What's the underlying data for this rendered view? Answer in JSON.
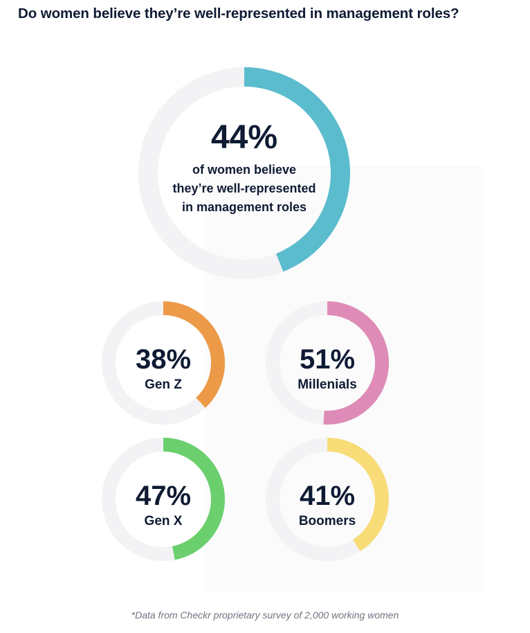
{
  "title": "Do women believe they’re well-represented in management roles?",
  "footnote": "*Data from Checkr proprietary survey of 2,000 working women",
  "chart_data": {
    "type": "donut",
    "track_color": "#f3f3f5",
    "main": {
      "value": 44,
      "value_label": "44%",
      "label_lines": [
        "of women believe",
        "they’re well-represented",
        "in management roles"
      ],
      "color": "#5bbccd"
    },
    "groups": [
      {
        "name": "Gen Z",
        "value": 38,
        "value_label": "38%",
        "color": "#ec9a48"
      },
      {
        "name": "Millenials",
        "value": 51,
        "value_label": "51%",
        "color": "#de8cb7"
      },
      {
        "name": "Gen X",
        "value": 47,
        "value_label": "47%",
        "color": "#6bcf6e"
      },
      {
        "name": "Boomers",
        "value": 41,
        "value_label": "41%",
        "color": "#f8dc78"
      }
    ]
  }
}
